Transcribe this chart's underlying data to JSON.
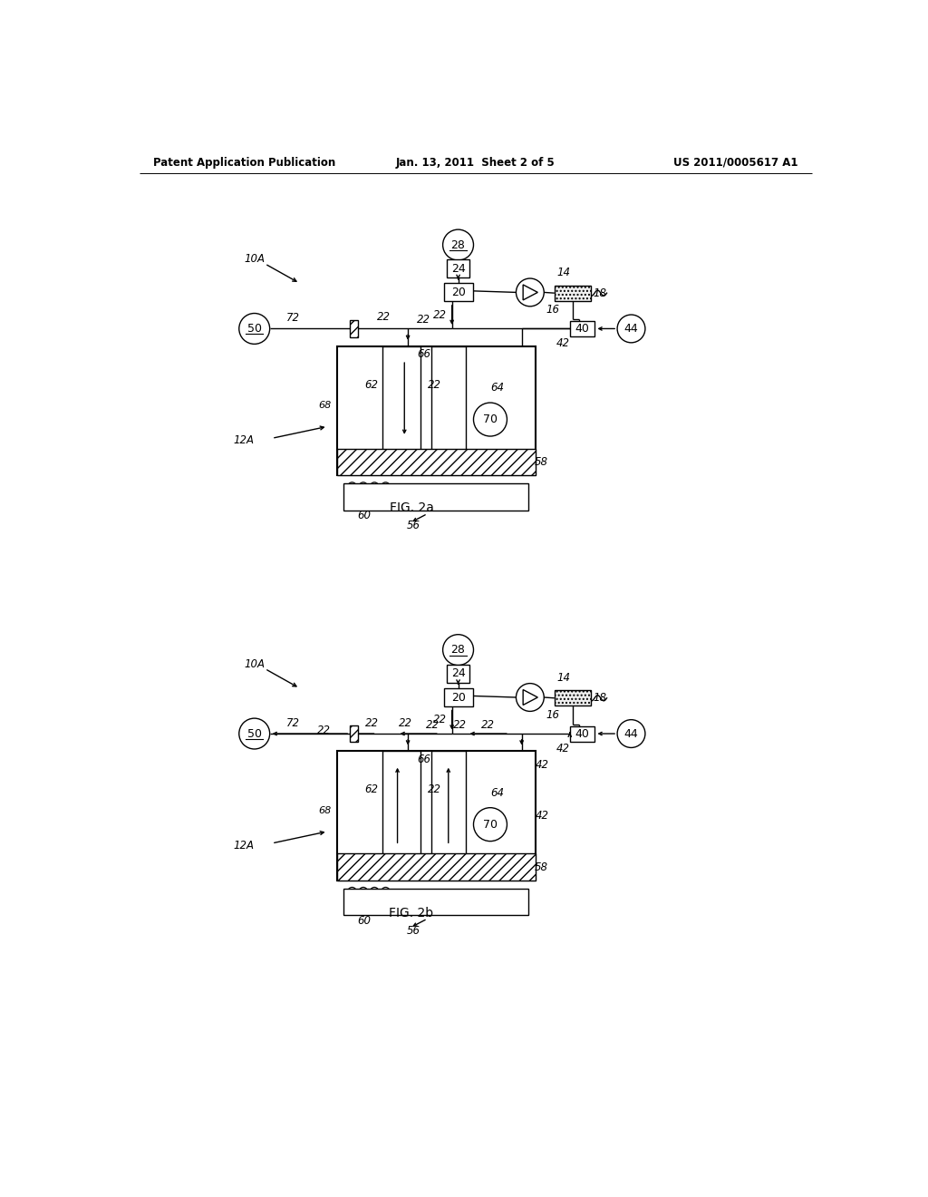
{
  "bg_color": "#ffffff",
  "line_color": "#000000",
  "header_left": "Patent Application Publication",
  "header_mid": "Jan. 13, 2011  Sheet 2 of 5",
  "header_right": "US 2011/0005617 A1",
  "fig2a_label": "FIG. 2a",
  "fig2b_label": "FIG. 2b"
}
